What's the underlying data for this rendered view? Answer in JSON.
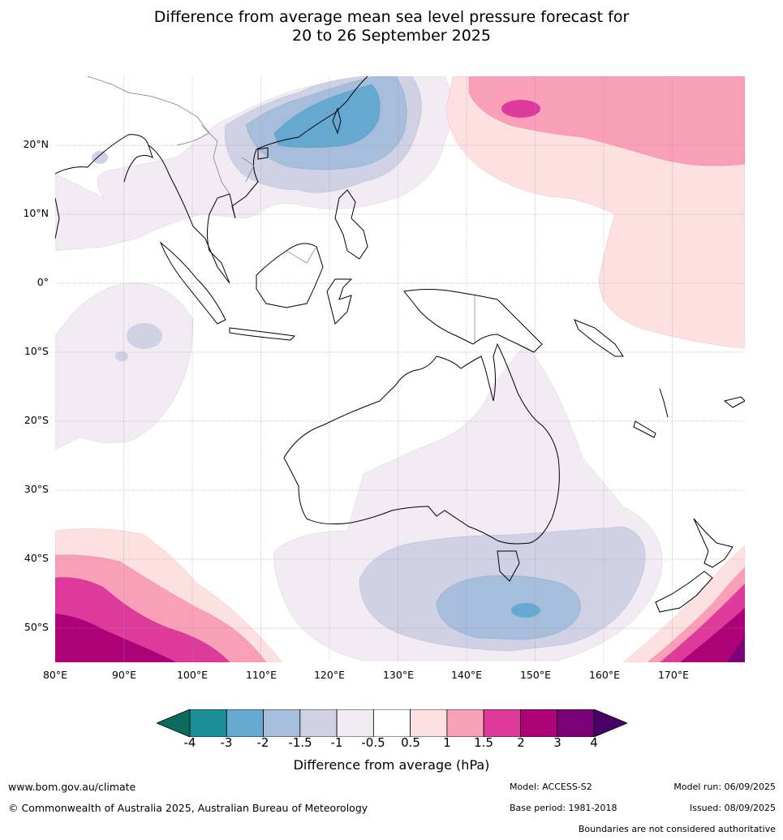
{
  "title": {
    "line1": "Difference from average mean sea level pressure forecast for",
    "line2": "20 to 26 September 2025"
  },
  "map": {
    "lat_labels": [
      "20°N",
      "10°N",
      "0°",
      "10°S",
      "20°S",
      "30°S",
      "40°S",
      "50°S"
    ],
    "lon_labels": [
      "80°E",
      "90°E",
      "100°E",
      "110°E",
      "120°E",
      "130°E",
      "140°E",
      "150°E",
      "160°E",
      "170°E"
    ]
  },
  "colorbar": {
    "ticks": [
      "-4",
      "-3",
      "-2",
      "-1.5",
      "-1",
      "-0.5",
      "0.5",
      "1",
      "1.5",
      "2",
      "3",
      "4"
    ],
    "colors": [
      "#1b8f97",
      "#65a9d1",
      "#a6bedc",
      "#d0d1e5",
      "#f2ebf4",
      "#ffffff",
      "#fde0e0",
      "#f99fb8",
      "#dd3a9b",
      "#ad0178",
      "#7a0177"
    ],
    "under_color": "#0c6b5c",
    "over_color": "#4a006a",
    "label": "Difference from average (hPa)"
  },
  "footer": {
    "website": "www.bom.gov.au/climate",
    "copyright": "© Commonwealth of Australia 2025, Australian Bureau of Meteorology",
    "model": "Model: ACCESS-S2",
    "base_period": "Base period: 1981-2018",
    "model_run": "Model run: 06/09/2025",
    "issued": "Issued: 08/09/2025",
    "disclaimer": "Boundaries are not considered authoritative"
  }
}
